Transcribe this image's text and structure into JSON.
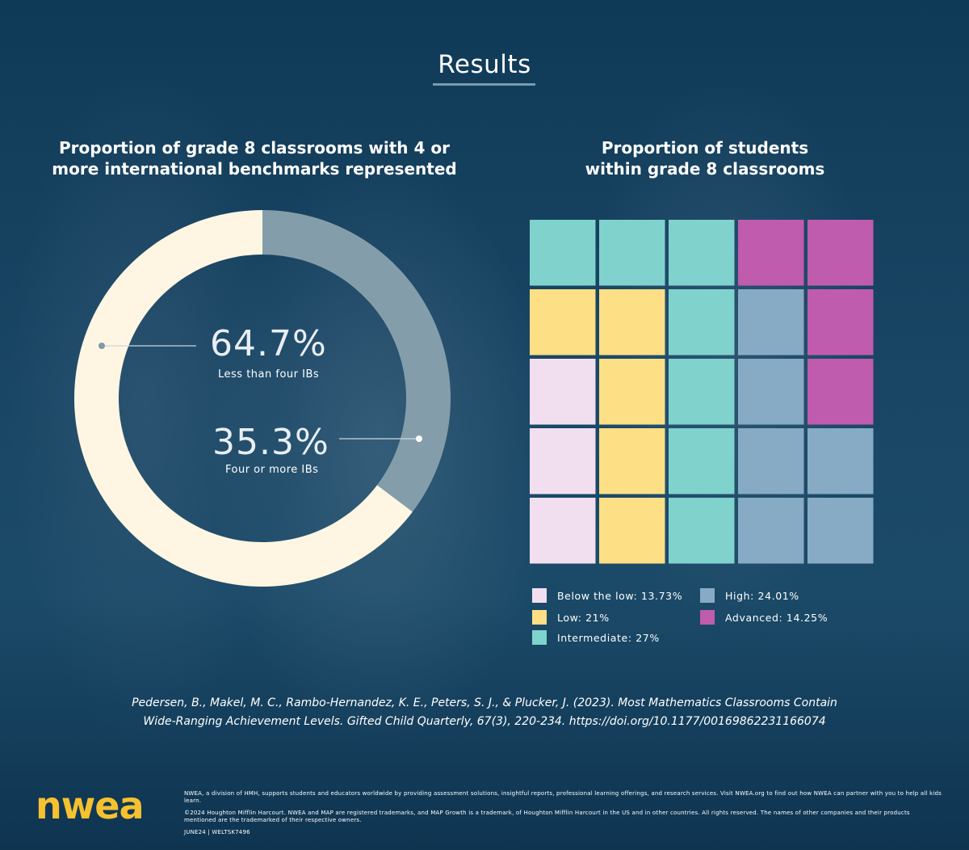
{
  "title": "Results",
  "colors": {
    "background": "#123a55",
    "donut_major": "#fef6e2",
    "donut_minor": "#839eaa",
    "below_low": "#f1dff0",
    "low": "#fddf85",
    "intermediate": "#80d2cd",
    "high": "#88abc5",
    "advanced": "#bf5cad",
    "logo": "#f6c12f"
  },
  "chart_data": [
    {
      "type": "pie",
      "title": "Proportion of grade 8 classrooms with 4 or more international benchmarks represented",
      "slices": [
        {
          "label": "Less than four IBs",
          "value": 64.7,
          "display": "64.7%",
          "color": "#fef6e2"
        },
        {
          "label": "Four or more IBs",
          "value": 35.3,
          "display": "35.3%",
          "color": "#839eaa"
        }
      ]
    },
    {
      "type": "heatmap",
      "title": "Proportion of students within grade 8 classrooms",
      "grid": [
        [
          "intermediate",
          "intermediate",
          "intermediate",
          "advanced",
          "advanced"
        ],
        [
          "low",
          "low",
          "intermediate",
          "high",
          "advanced"
        ],
        [
          "below_low",
          "low",
          "intermediate",
          "high",
          "advanced"
        ],
        [
          "below_low",
          "low",
          "intermediate",
          "high",
          "high"
        ],
        [
          "below_low",
          "low",
          "intermediate",
          "high",
          "high"
        ]
      ],
      "legend": [
        {
          "key": "below_low",
          "label": "Below the low: 13.73%",
          "value": 13.73,
          "color": "#f1dff0"
        },
        {
          "key": "low",
          "label": "Low: 21%",
          "value": 21,
          "color": "#fddf85"
        },
        {
          "key": "intermediate",
          "label": "Intermediate: 27%",
          "value": 27,
          "color": "#80d2cd"
        },
        {
          "key": "high",
          "label": "High: 24.01%",
          "value": 24.01,
          "color": "#88abc5"
        },
        {
          "key": "advanced",
          "label": "Advanced: 14.25%",
          "value": 14.25,
          "color": "#bf5cad"
        }
      ]
    }
  ],
  "donut_title_lines": [
    "Proportion of grade 8 classrooms with 4 or",
    "more international benchmarks represented"
  ],
  "waffle_title_lines": [
    "Proportion of students",
    "within grade 8 classrooms"
  ],
  "citation_lines": [
    "Pedersen, B., Makel, M. C., Rambo-Hernandez, K. E., Peters, S. J., & Plucker, J. (2023). Most Mathematics Classrooms Contain",
    "Wide-Ranging Achievement Levels. Gifted Child Quarterly, 67(3), 220-234. https://doi.org/10.1177/00169862231166074"
  ],
  "footer": {
    "logo": "nwea",
    "line1": "NWEA, a division of HMH, supports students and educators worldwide by providing assessment solutions, insightful reports, professional learning offerings, and research services. Visit NWEA.org to find out how NWEA can partner with you to help all kids learn.",
    "line2": "©2024 Houghton Mifflin Harcourt. NWEA and MAP are registered trademarks, and MAP Growth is a trademark, of Houghton Mifflin Harcourt in the US and in other countries. All rights reserved. The names of other companies and their products mentioned are the trademarked of their respective owners.",
    "line3": "JUNE24 | WELTSK7496"
  }
}
